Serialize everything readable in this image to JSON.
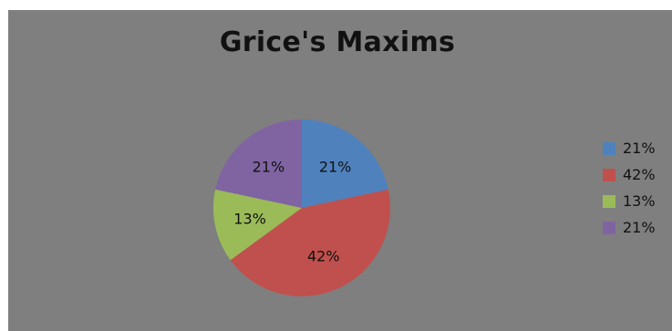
{
  "chart_data": {
    "type": "pie",
    "title": "Grice's Maxims",
    "values": [
      21,
      42,
      13,
      21
    ],
    "labels": [
      "21%",
      "42%",
      "13%",
      "21%"
    ],
    "colors": [
      "#4f81bd",
      "#c0504d",
      "#9bbb59",
      "#8064a2"
    ],
    "legend_position": "right",
    "background": "#7f7f7f"
  }
}
